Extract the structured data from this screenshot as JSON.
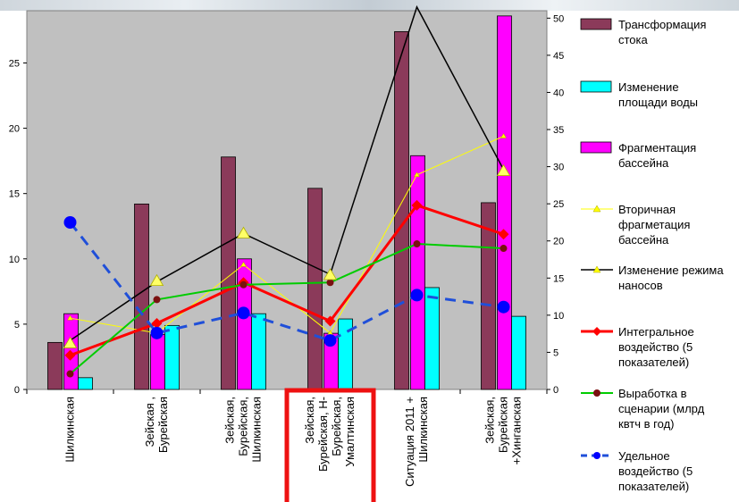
{
  "chart_data": {
    "type": "bar",
    "categories": [
      [
        "Шилкинская"
      ],
      [
        "Зейская ,",
        "Бурейская"
      ],
      [
        "Зейская,",
        "Бурейская,",
        "Шилкинская"
      ],
      [
        "Зейская,",
        "Бурейская, Н-",
        "Бурейская,",
        "Умалтинская"
      ],
      [
        "Ситуация 2011 +",
        "Шилкинская"
      ],
      [
        "Зейская,",
        "Бурейская",
        "+Хинганская"
      ]
    ],
    "y_left": {
      "ylim": [
        0,
        29
      ],
      "ticks": [
        0,
        5,
        10,
        15,
        20,
        25
      ]
    },
    "y_right": {
      "ylim": [
        0,
        51
      ],
      "ticks": [
        0,
        5,
        10,
        15,
        20,
        25,
        30,
        35,
        40,
        45,
        50
      ]
    },
    "plot_background": "#c0c0c0",
    "highlight_category_index": 3,
    "highlight_color": "#ee1111",
    "series": [
      {
        "name": "Трансформация стока",
        "legend_lines": [
          "Трансформация",
          "стока"
        ],
        "kind": "bar",
        "axis": "left",
        "color": "#8b3a5a",
        "values": [
          3.6,
          14.2,
          17.8,
          15.4,
          27.4,
          14.3
        ]
      },
      {
        "name": "Изменение площади воды",
        "legend_lines": [
          "Изменение",
          "площади воды"
        ],
        "kind": "bar",
        "axis": "left",
        "color": "#00ffff",
        "values": [
          0.9,
          4.9,
          5.8,
          5.4,
          7.8,
          5.6
        ]
      },
      {
        "name": "Фрагментация бассейна",
        "legend_lines": [
          "Фрагментация",
          "бассейна"
        ],
        "kind": "bar",
        "axis": "left",
        "color": "#ff00ff",
        "values": [
          5.8,
          4.2,
          10.0,
          4.3,
          17.9,
          28.6
        ]
      },
      {
        "name": "Вторичная фрагметация бассейна",
        "legend_lines": [
          "Вторичная",
          "фрагметация",
          "бассейна"
        ],
        "kind": "line",
        "axis": "right",
        "color": "#ffff00",
        "width": 1,
        "dash": "",
        "marker": "triangle",
        "values": [
          9.6,
          7.6,
          16.8,
          7.6,
          28.9,
          34.1
        ]
      },
      {
        "name": "Изменение режима наносов",
        "legend_lines": [
          "Изменение режима",
          "наносов"
        ],
        "kind": "line",
        "axis": "right",
        "color": "#000000",
        "width": 1.5,
        "dash": "",
        "marker": "none",
        "values": [
          6.6,
          14.5,
          21.0,
          15.5,
          51.5,
          29.6
        ]
      },
      {
        "name": "Интегральное воздейство (5 показателей)",
        "legend_lines": [
          "Интегральное",
          "воздейство (5",
          "показателей)"
        ],
        "kind": "line",
        "axis": "right",
        "color": "#ff0000",
        "width": 3,
        "dash": "",
        "marker": "diamond",
        "values": [
          4.6,
          8.9,
          14.4,
          9.2,
          24.8,
          20.9
        ]
      },
      {
        "name": "Выработка в сценарии (млрд квтч в год)",
        "legend_lines": [
          "Выработка в",
          "сценарии (млрд",
          "квтч в год)"
        ],
        "kind": "line",
        "axis": "right",
        "color": "#00cc00",
        "width": 2,
        "dash": "",
        "marker": "circle-dark",
        "values": [
          2.1,
          12.1,
          14.1,
          14.4,
          19.6,
          19.0
        ]
      },
      {
        "name": "Удельное воздейство (5 показателей)",
        "legend_lines": [
          "Удельное",
          "воздейство (5",
          "показателей)"
        ],
        "kind": "line",
        "axis": "right",
        "color": "#1f4fd9",
        "width": 3,
        "dash": "12 8",
        "marker": "circle-blue",
        "values": [
          22.5,
          7.6,
          10.3,
          6.6,
          12.7,
          11.1
        ]
      }
    ],
    "triangle_markers_on_black": [
      {
        "category": 0,
        "value": 6.2
      },
      {
        "category": 1,
        "value": 14.6
      },
      {
        "category": 2,
        "value": 21.0
      },
      {
        "category": 3,
        "value": 15.4
      },
      {
        "category": 5,
        "value": 29.4
      }
    ]
  }
}
